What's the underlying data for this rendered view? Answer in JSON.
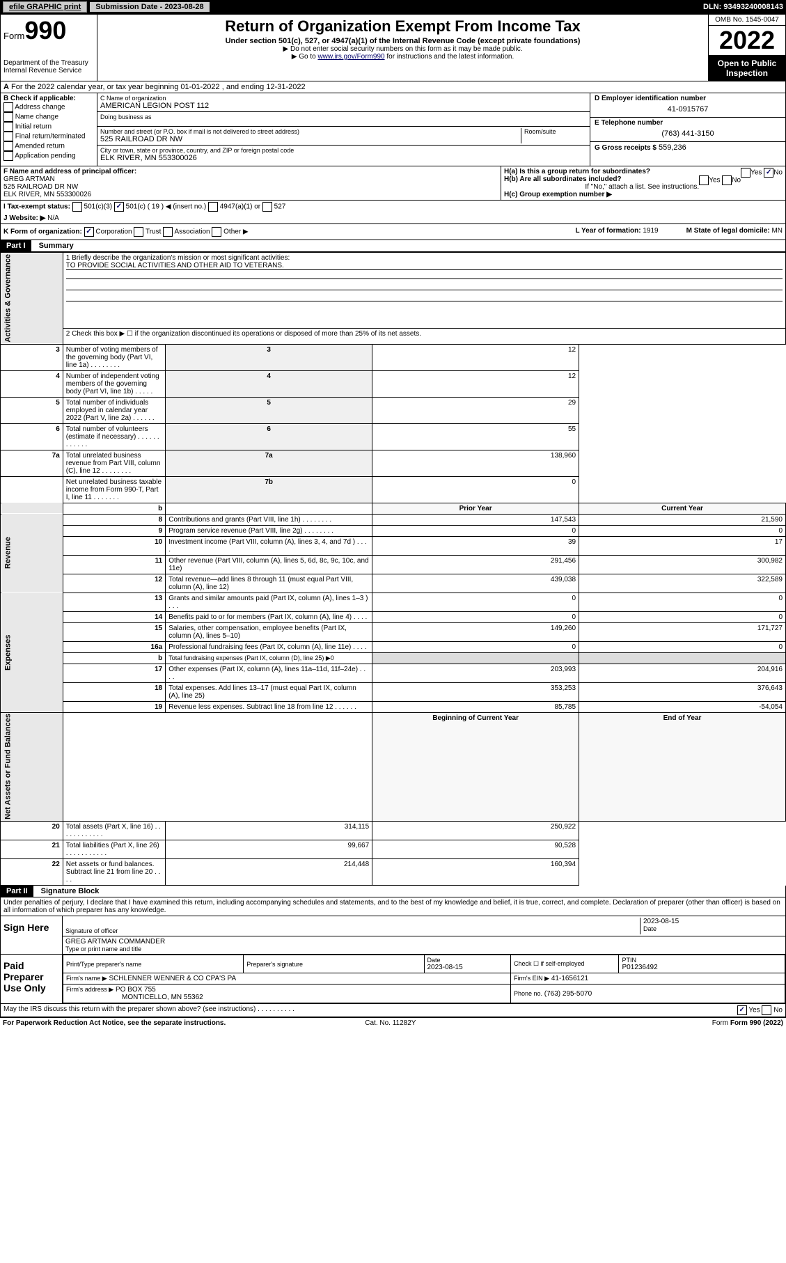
{
  "topbar": {
    "efile": "efile GRAPHIC print",
    "submission": "Submission Date - 2023-08-28",
    "dln": "DLN: 93493240008143"
  },
  "header": {
    "form_word": "Form",
    "form_num": "990",
    "title": "Return of Organization Exempt From Income Tax",
    "subtitle": "Under section 501(c), 527, or 4947(a)(1) of the Internal Revenue Code (except private foundations)",
    "note1": "▶ Do not enter social security numbers on this form as it may be made public.",
    "note2_pre": "▶ Go to ",
    "note2_link": "www.irs.gov/Form990",
    "note2_post": " for instructions and the latest information.",
    "dept": "Department of the Treasury",
    "irs": "Internal Revenue Service",
    "omb": "OMB No. 1545-0047",
    "year": "2022",
    "open_public": "Open to Public Inspection"
  },
  "line_a": "For the 2022 calendar year, or tax year beginning 01-01-2022     , and ending 12-31-2022",
  "box_b": {
    "title": "B Check if applicable:",
    "opts": [
      "Address change",
      "Name change",
      "Initial return",
      "Final return/terminated",
      "Amended return",
      "Application pending"
    ]
  },
  "box_c": {
    "name_label": "C Name of organization",
    "name": "AMERICAN LEGION POST 112",
    "dba_label": "Doing business as",
    "dba": "",
    "addr_label": "Number and street (or P.O. box if mail is not delivered to street address)",
    "room_label": "Room/suite",
    "addr": "525 RAILROAD DR NW",
    "city_label": "City or town, state or province, country, and ZIP or foreign postal code",
    "city": "ELK RIVER, MN  553300026"
  },
  "box_d": {
    "label": "D Employer identification number",
    "value": "41-0915767"
  },
  "box_e": {
    "label": "E Telephone number",
    "value": "(763) 441-3150"
  },
  "box_g": {
    "label": "G Gross receipts $",
    "value": "559,236"
  },
  "box_f": {
    "label": "F  Name and address of principal officer:",
    "name": "GREG ARTMAN",
    "addr1": "525 RAILROAD DR NW",
    "addr2": "ELK RIVER, MN  553300026"
  },
  "box_h": {
    "a_label": "H(a)  Is this a group return for subordinates?",
    "a_yes": "Yes",
    "a_no": "No",
    "b_label": "H(b)  Are all subordinates included?",
    "b_yes": "Yes",
    "b_no": "No",
    "b_note": "If \"No,\" attach a list. See instructions.",
    "c_label": "H(c)  Group exemption number ▶"
  },
  "box_i": {
    "label": "I    Tax-exempt status:",
    "c3": "501(c)(3)",
    "c19": "501(c) ( 19 ) ◀ (insert no.)",
    "a4947": "4947(a)(1) or",
    "s527": "527"
  },
  "box_j": {
    "label": "J   Website: ▶",
    "value": "N/A"
  },
  "box_k": {
    "label": "K Form of organization:",
    "corp": "Corporation",
    "trust": "Trust",
    "assoc": "Association",
    "other": "Other ▶"
  },
  "box_l": {
    "label": "L Year of formation:",
    "value": "1919"
  },
  "box_m": {
    "label": "M State of legal domicile:",
    "value": "MN"
  },
  "part1": {
    "header": "Part I",
    "title": "Summary",
    "line1_label": "1  Briefly describe the organization's mission or most significant activities:",
    "line1_text": "TO PROVIDE SOCIAL ACTIVITIES AND OTHER AID TO VETERANS.",
    "line2": "2   Check this box ▶ ☐  if the organization discontinued its operations or disposed of more than 25% of its net assets.",
    "sections": {
      "gov": "Activities & Governance",
      "rev": "Revenue",
      "exp": "Expenses",
      "net": "Net Assets or Fund Balances"
    },
    "rows_single": [
      {
        "n": "3",
        "label": "Number of voting members of the governing body (Part VI, line 1a)  .    .    .    .    .    .    .    .",
        "code": "3",
        "val": "12"
      },
      {
        "n": "4",
        "label": "Number of independent voting members of the governing body (Part VI, line 1b)  .    .    .    .    .",
        "code": "4",
        "val": "12"
      },
      {
        "n": "5",
        "label": "Total number of individuals employed in calendar year 2022 (Part V, line 2a)  .    .    .    .    .    .",
        "code": "5",
        "val": "29"
      },
      {
        "n": "6",
        "label": "Total number of volunteers (estimate if necessary)  .    .    .    .    .    .    .    .    .    .    .    .",
        "code": "6",
        "val": "55"
      },
      {
        "n": "7a",
        "label": "Total unrelated business revenue from Part VIII, column (C), line 12  .    .    .    .    .    .    .    .",
        "code": "7a",
        "val": "138,960"
      },
      {
        "n": "",
        "label": "Net unrelated business taxable income from Form 990-T, Part I, line 11  .    .    .    .    .    .    .",
        "code": "7b",
        "val": "0"
      }
    ],
    "col_headers": {
      "b": "b",
      "prior": "Prior Year",
      "current": "Current Year"
    },
    "rows_double": [
      {
        "n": "8",
        "label": "Contributions and grants (Part VIII, line 1h)   .    .    .    .    .    .    .    .",
        "prior": "147,543",
        "curr": "21,590",
        "sec": "rev"
      },
      {
        "n": "9",
        "label": "Program service revenue (Part VIII, line 2g)   .    .    .    .    .    .    .    .",
        "prior": "0",
        "curr": "0",
        "sec": "rev"
      },
      {
        "n": "10",
        "label": "Investment income (Part VIII, column (A), lines 3, 4, and 7d )   .    .    .    .",
        "prior": "39",
        "curr": "17",
        "sec": "rev"
      },
      {
        "n": "11",
        "label": "Other revenue (Part VIII, column (A), lines 5, 6d, 8c, 9c, 10c, and 11e)",
        "prior": "291,456",
        "curr": "300,982",
        "sec": "rev"
      },
      {
        "n": "12",
        "label": "Total revenue—add lines 8 through 11 (must equal Part VIII, column (A), line 12)",
        "prior": "439,038",
        "curr": "322,589",
        "sec": "rev"
      },
      {
        "n": "13",
        "label": "Grants and similar amounts paid (Part IX, column (A), lines 1–3 )  .    .    .",
        "prior": "0",
        "curr": "0",
        "sec": "exp"
      },
      {
        "n": "14",
        "label": "Benefits paid to or for members (Part IX, column (A), line 4)  .    .    .    .",
        "prior": "0",
        "curr": "0",
        "sec": "exp"
      },
      {
        "n": "15",
        "label": "Salaries, other compensation, employee benefits (Part IX, column (A), lines 5–10)",
        "prior": "149,260",
        "curr": "171,727",
        "sec": "exp"
      },
      {
        "n": "16a",
        "label": "Professional fundraising fees (Part IX, column (A), line 11e)  .    .    .    .",
        "prior": "0",
        "curr": "0",
        "sec": "exp"
      },
      {
        "n": "b",
        "label": "Total fundraising expenses (Part IX, column (D), line 25) ▶0",
        "prior": "",
        "curr": "",
        "sec": "exp",
        "blank": true
      },
      {
        "n": "17",
        "label": "Other expenses (Part IX, column (A), lines 11a–11d, 11f–24e)  .    .    .    .",
        "prior": "203,993",
        "curr": "204,916",
        "sec": "exp"
      },
      {
        "n": "18",
        "label": "Total expenses. Add lines 13–17 (must equal Part IX, column (A), line 25)",
        "prior": "353,253",
        "curr": "376,643",
        "sec": "exp"
      },
      {
        "n": "19",
        "label": "Revenue less expenses. Subtract line 18 from line 12  .    .    .    .    .    .",
        "prior": "85,785",
        "curr": "-54,054",
        "sec": "exp"
      }
    ],
    "net_headers": {
      "begin": "Beginning of Current Year",
      "end": "End of Year"
    },
    "rows_net": [
      {
        "n": "20",
        "label": "Total assets (Part X, line 16)  .    .    .    .    .    .    .    .    .    .    .    .",
        "prior": "314,115",
        "curr": "250,922"
      },
      {
        "n": "21",
        "label": "Total liabilities (Part X, line 26)  .    .    .    .    .    .    .    .    .    .    .",
        "prior": "99,667",
        "curr": "90,528"
      },
      {
        "n": "22",
        "label": "Net assets or fund balances. Subtract line 21 from line 20   .    .    .    .",
        "prior": "214,448",
        "curr": "160,394"
      }
    ]
  },
  "part2": {
    "header": "Part II",
    "title": "Signature Block",
    "declaration": "Under penalties of perjury, I declare that I have examined this return, including accompanying schedules and statements, and to the best of my knowledge and belief, it is true, correct, and complete. Declaration of preparer (other than officer) is based on all information of which preparer has any knowledge.",
    "sign_here": "Sign Here",
    "sig_officer_label": "Signature of officer",
    "sig_date": "2023-08-15",
    "date_label": "Date",
    "officer_name": "GREG ARTMAN COMMANDER",
    "officer_name_label": "Type or print name and title",
    "paid": "Paid Preparer Use Only",
    "prep_name_label": "Print/Type preparer's name",
    "prep_sig_label": "Preparer's signature",
    "prep_date_label": "Date",
    "prep_date": "2023-08-15",
    "check_label": "Check ☐ if self-employed",
    "ptin_label": "PTIN",
    "ptin": "P01236492",
    "firm_name_label": "Firm's name    ▶",
    "firm_name": "SCHLENNER WENNER & CO CPA'S PA",
    "firm_ein_label": "Firm's EIN ▶",
    "firm_ein": "41-1656121",
    "firm_addr_label": "Firm's address ▶",
    "firm_addr1": "PO BOX 755",
    "firm_addr2": "MONTICELLO, MN  55362",
    "phone_label": "Phone no.",
    "phone": "(763) 295-5070",
    "discuss": "May the IRS discuss this return with the preparer shown above? (see instructions)   .    .    .    .    .    .    .    .    .    .",
    "discuss_yes": "Yes",
    "discuss_no": "No"
  },
  "footer": {
    "paperwork": "For Paperwork Reduction Act Notice, see the separate instructions.",
    "cat": "Cat. No. 11282Y",
    "form": "Form 990 (2022)"
  }
}
